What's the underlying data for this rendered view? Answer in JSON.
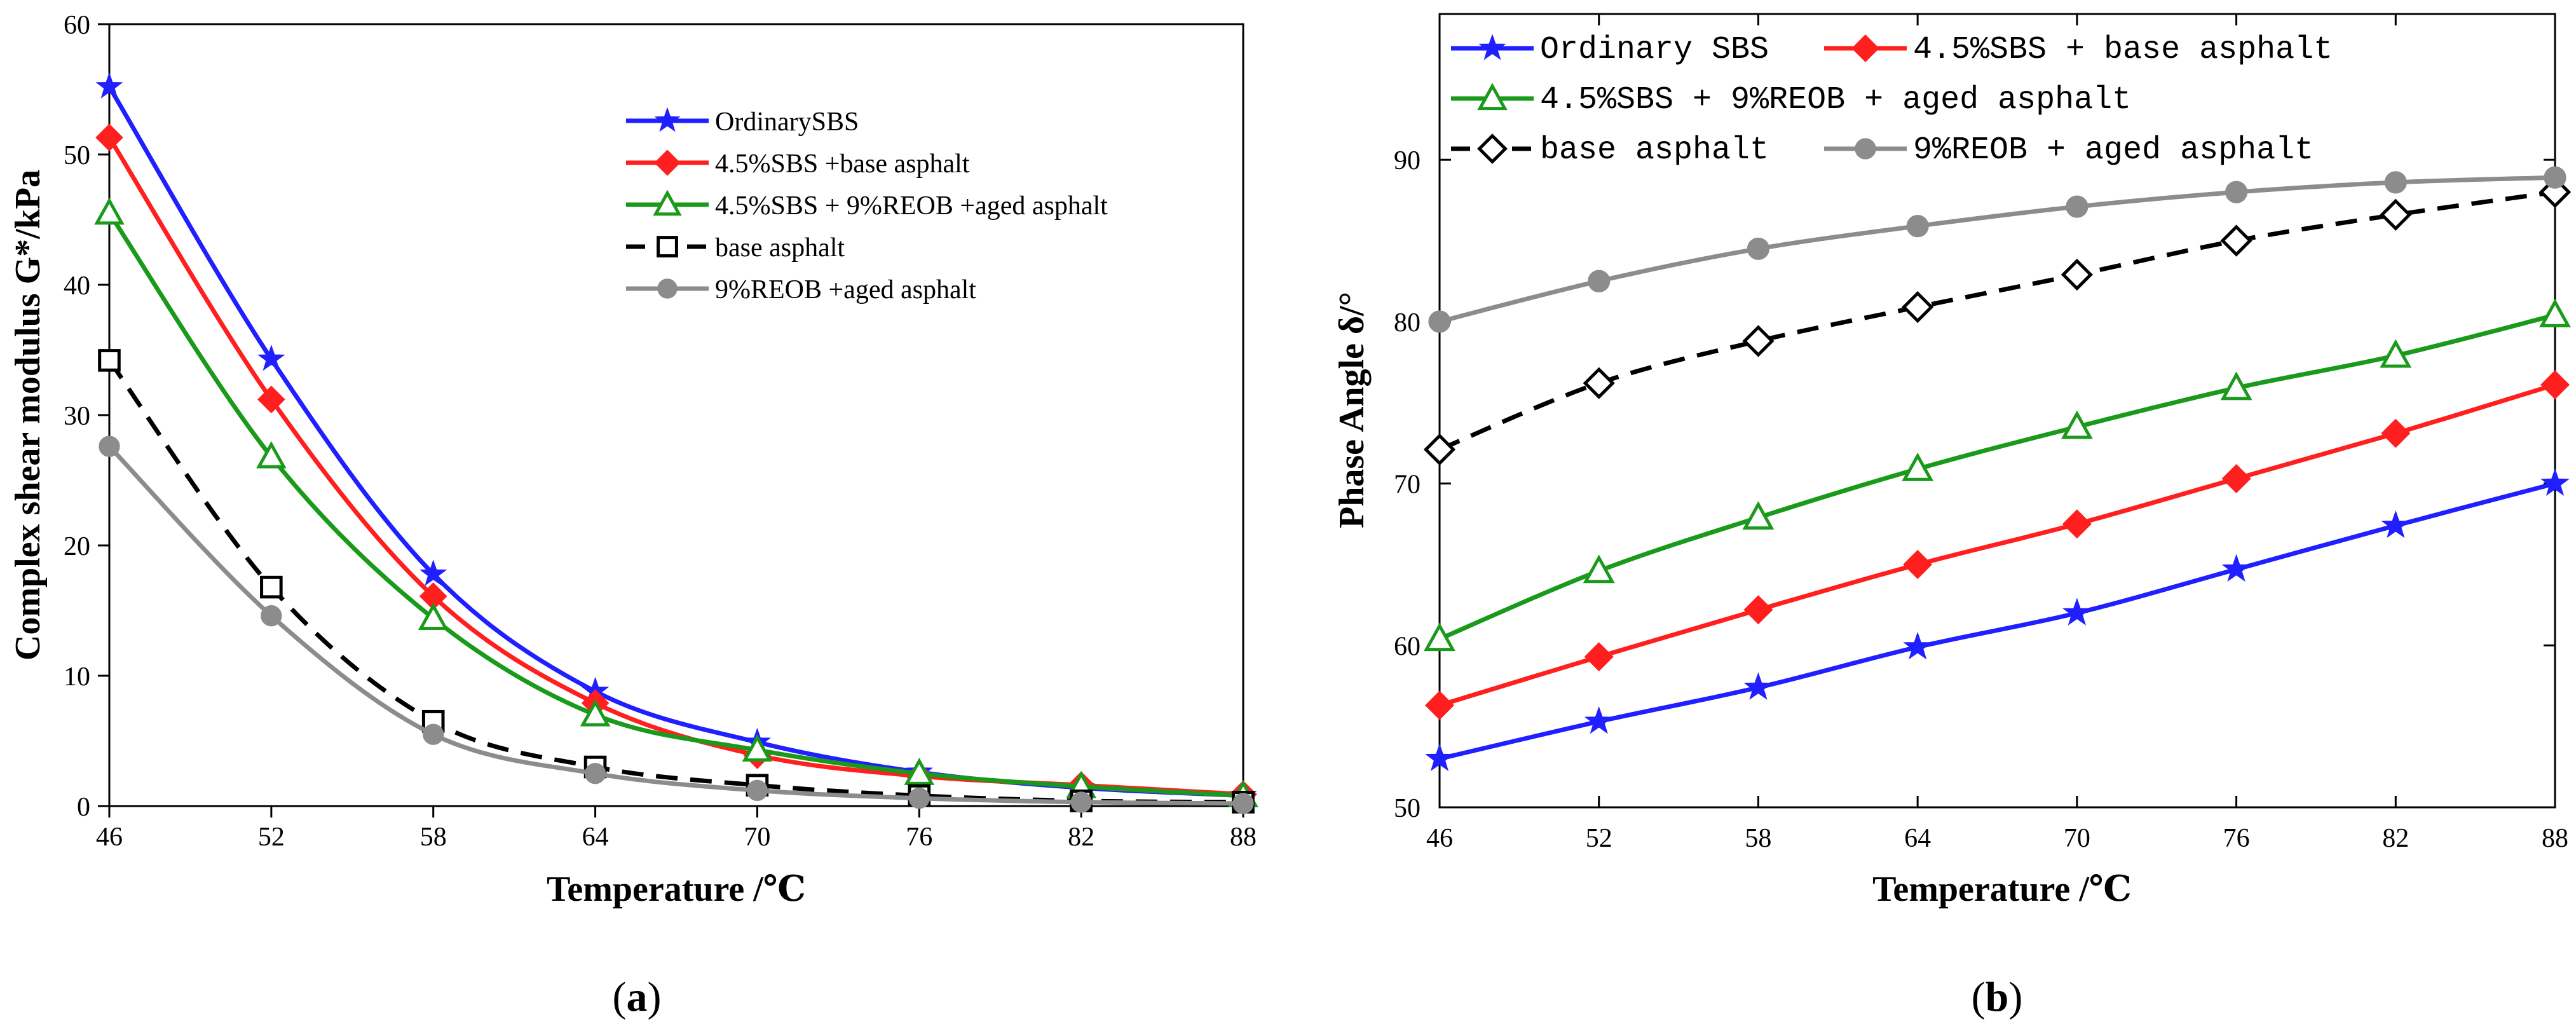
{
  "chart_data": [
    {
      "type": "line",
      "caption": "a",
      "xlabel": "Temperature /℃",
      "ylabel": "Complex shear modulus  G*/kPa",
      "xlim": [
        46,
        88
      ],
      "ylim": [
        0,
        60
      ],
      "xticks": [
        46,
        52,
        58,
        64,
        70,
        76,
        82,
        88
      ],
      "yticks": [
        0,
        10,
        20,
        30,
        40,
        50,
        60
      ],
      "x": [
        46,
        52,
        58,
        64,
        70,
        76,
        82,
        88
      ],
      "legend_position": "top-right",
      "series": [
        {
          "name": "OrdinarySBS",
          "color": "#1f1fff",
          "marker": "star",
          "values": [
            55.2,
            34.3,
            17.8,
            8.8,
            4.9,
            2.6,
            1.4,
            0.8
          ]
        },
        {
          "name": "4.5%SBS +base asphalt",
          "color": "#ff1f1f",
          "marker": "diamond",
          "values": [
            51.3,
            31.2,
            16.1,
            7.9,
            3.9,
            2.3,
            1.6,
            0.9
          ]
        },
        {
          "name": "4.5%SBS + 9%REOB +aged asphalt",
          "color": "#1a9a1a",
          "marker": "triangle-open",
          "values": [
            45.5,
            26.8,
            14.4,
            7.0,
            4.3,
            2.5,
            1.5,
            0.8
          ]
        },
        {
          "name": "base asphalt",
          "color": "#000000",
          "marker": "square-open",
          "dashed": true,
          "values": [
            34.2,
            16.8,
            6.5,
            3.0,
            1.6,
            0.8,
            0.4,
            0.3
          ]
        },
        {
          "name": "9%REOB +aged asphalt",
          "color": "#8c8c8c",
          "marker": "circle",
          "values": [
            27.6,
            14.6,
            5.5,
            2.5,
            1.2,
            0.6,
            0.3,
            0.2
          ]
        }
      ]
    },
    {
      "type": "line",
      "caption": "b",
      "xlabel": "Temperature /℃",
      "ylabel": "Phase Angle  δ/°",
      "xlim": [
        46,
        88
      ],
      "ylim": [
        50,
        99
      ],
      "xticks": [
        46,
        52,
        58,
        64,
        70,
        76,
        82,
        88
      ],
      "yticks": [
        50,
        60,
        70,
        80,
        90
      ],
      "x": [
        46,
        52,
        58,
        64,
        70,
        76,
        82,
        88
      ],
      "legend_position": "top",
      "series": [
        {
          "name": "Ordinary SBS",
          "color": "#1f1fff",
          "marker": "star",
          "values": [
            53.0,
            55.3,
            57.4,
            59.9,
            62.0,
            64.7,
            67.4,
            70.0
          ]
        },
        {
          "name": "4.5%SBS + base asphalt",
          "color": "#ff1f1f",
          "marker": "diamond",
          "values": [
            56.3,
            59.3,
            62.2,
            65.0,
            67.5,
            70.3,
            73.1,
            76.1
          ]
        },
        {
          "name": "4.5%SBS + 9%REOB + aged asphalt",
          "color": "#1a9a1a",
          "marker": "triangle-open",
          "values": [
            60.4,
            64.6,
            67.9,
            70.9,
            73.5,
            75.9,
            77.9,
            80.4
          ]
        },
        {
          "name": "base asphalt",
          "color": "#000000",
          "marker": "diamond-open",
          "dashed": true,
          "values": [
            72.1,
            76.2,
            78.8,
            80.9,
            82.9,
            85.0,
            86.6,
            88.0
          ]
        },
        {
          "name": "9%REOB + aged asphalt",
          "color": "#8c8c8c",
          "marker": "circle",
          "values": [
            80.0,
            82.5,
            84.5,
            85.9,
            87.1,
            88.0,
            88.6,
            88.9
          ]
        }
      ]
    }
  ]
}
